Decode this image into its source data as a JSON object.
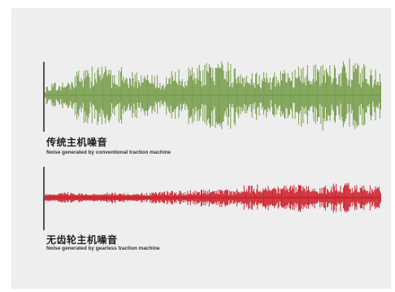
{
  "waveforms": [
    {
      "id": "conventional",
      "title_cn": "传统主机噪音",
      "title_en": "Noise generated by conventional traction machine",
      "color": "#7a9f4f",
      "level": "high"
    },
    {
      "id": "gearless",
      "title_cn": "无齿轮主机噪音",
      "title_en": "Noise generated by gearless traction machine",
      "color": "#cc2730",
      "level": "low"
    }
  ]
}
